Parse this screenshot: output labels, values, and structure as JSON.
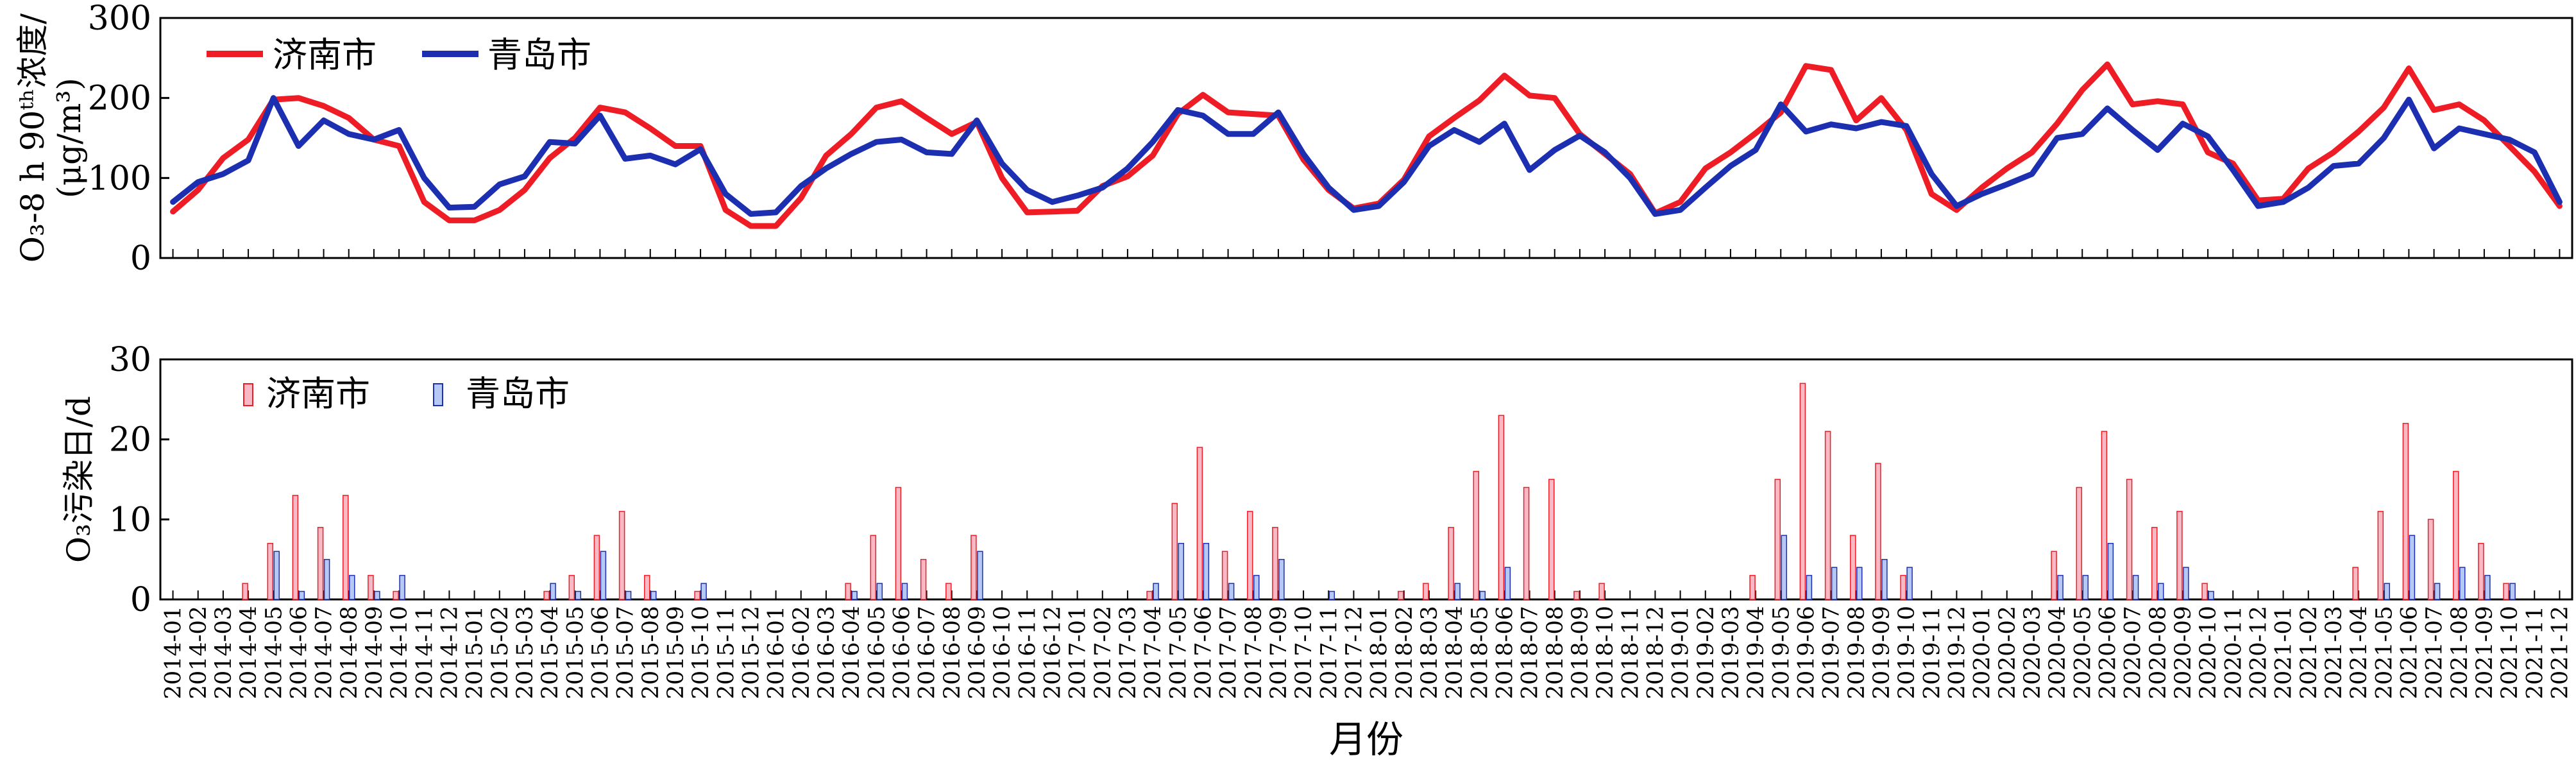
{
  "x_axis_label": "月份",
  "chart_data": [
    {
      "type": "line",
      "ylabel_line1": "O₃-8 h 90ᵗʰ浓度/",
      "ylabel_line2": "(μg/m³)",
      "ylim": [
        0,
        300
      ],
      "yticks": [
        "0",
        "100",
        "200",
        "300"
      ],
      "legend": "top-left",
      "series": [
        {
          "name": "济南市",
          "color": "#ee1c25",
          "values": [
            58,
            85,
            125,
            148,
            198,
            200,
            190,
            175,
            148,
            140,
            70,
            47,
            47,
            60,
            85,
            125,
            150,
            188,
            182,
            162,
            140,
            140,
            60,
            40,
            40,
            75,
            128,
            155,
            188,
            196,
            175,
            155,
            170,
            100,
            57,
            58,
            59,
            90,
            102,
            128,
            180,
            204,
            182,
            180,
            178,
            123,
            85,
            62,
            68,
            98,
            152,
            175,
            197,
            228,
            203,
            200,
            155,
            130,
            105,
            56,
            70,
            112,
            132,
            156,
            182,
            240,
            235,
            172,
            200,
            160,
            80,
            60,
            88,
            112,
            132,
            168,
            210,
            242,
            192,
            196,
            192,
            132,
            118,
            72,
            74,
            112,
            132,
            158,
            188,
            237,
            185,
            192,
            172,
            140,
            108,
            65
          ]
        },
        {
          "name": "青岛市",
          "color": "#1c2fb0",
          "values": [
            70,
            95,
            105,
            122,
            200,
            140,
            172,
            155,
            148,
            160,
            100,
            63,
            64,
            92,
            102,
            145,
            143,
            178,
            124,
            128,
            117,
            136,
            80,
            55,
            57,
            90,
            112,
            130,
            145,
            148,
            132,
            130,
            172,
            118,
            85,
            70,
            78,
            88,
            112,
            145,
            185,
            178,
            155,
            155,
            182,
            130,
            88,
            60,
            65,
            95,
            140,
            160,
            145,
            168,
            110,
            135,
            153,
            132,
            100,
            55,
            60,
            88,
            115,
            135,
            192,
            158,
            167,
            162,
            170,
            165,
            105,
            65,
            80,
            92,
            105,
            150,
            155,
            187,
            160,
            135,
            168,
            152,
            110,
            65,
            70,
            88,
            115,
            118,
            150,
            198,
            137,
            162,
            155,
            148,
            132,
            70
          ]
        }
      ]
    },
    {
      "type": "bar",
      "ylabel": "O₃污染日/d",
      "ylim": [
        0,
        30
      ],
      "yticks": [
        "0",
        "10",
        "20",
        "30"
      ],
      "legend": "top-left",
      "series": [
        {
          "name": "济南市",
          "color": "#ee1c25",
          "fill": "#f8b8c4",
          "values": [
            0,
            0,
            0,
            2,
            7,
            13,
            9,
            13,
            3,
            1,
            0,
            0,
            0,
            0,
            0,
            1,
            3,
            8,
            11,
            3,
            0,
            1,
            0,
            0,
            0,
            0,
            0,
            2,
            8,
            14,
            5,
            2,
            8,
            0,
            0,
            0,
            0,
            0,
            0,
            1,
            12,
            19,
            6,
            11,
            9,
            0,
            0,
            0,
            0,
            1,
            2,
            9,
            16,
            23,
            14,
            15,
            1,
            2,
            0,
            0,
            0,
            0,
            0,
            3,
            15,
            27,
            21,
            8,
            17,
            3,
            0,
            0,
            0,
            0,
            0,
            6,
            14,
            21,
            15,
            9,
            11,
            2,
            0,
            0,
            0,
            0,
            0,
            4,
            11,
            22,
            10,
            16,
            7,
            2,
            0,
            0
          ]
        },
        {
          "name": "青岛市",
          "color": "#1c2fb0",
          "fill": "#b6c8f4",
          "values": [
            0,
            0,
            0,
            0,
            6,
            1,
            5,
            3,
            1,
            3,
            0,
            0,
            0,
            0,
            0,
            2,
            1,
            6,
            1,
            1,
            0,
            2,
            0,
            0,
            0,
            0,
            0,
            1,
            2,
            2,
            0,
            0,
            6,
            0,
            0,
            0,
            0,
            0,
            0,
            2,
            7,
            7,
            2,
            3,
            5,
            0,
            1,
            0,
            0,
            0,
            0,
            2,
            1,
            4,
            0,
            0,
            0,
            0,
            0,
            0,
            0,
            0,
            0,
            0,
            8,
            3,
            4,
            4,
            5,
            4,
            0,
            0,
            0,
            0,
            0,
            3,
            3,
            7,
            3,
            2,
            4,
            1,
            0,
            0,
            0,
            0,
            0,
            0,
            2,
            8,
            2,
            4,
            3,
            2,
            0,
            0
          ]
        }
      ]
    }
  ],
  "months": [
    "2014-01",
    "2014-02",
    "2014-03",
    "2014-04",
    "2014-05",
    "2014-06",
    "2014-07",
    "2014-08",
    "2014-09",
    "2014-10",
    "2014-11",
    "2014-12",
    "2015-01",
    "2015-02",
    "2015-03",
    "2015-04",
    "2015-05",
    "2015-06",
    "2015-07",
    "2015-08",
    "2015-09",
    "2015-10",
    "2015-11",
    "2015-12",
    "2016-01",
    "2016-02",
    "2016-03",
    "2016-04",
    "2016-05",
    "2016-06",
    "2016-07",
    "2016-08",
    "2016-09",
    "2016-10",
    "2016-11",
    "2016-12",
    "2017-01",
    "2017-02",
    "2017-03",
    "2017-04",
    "2017-05",
    "2017-06",
    "2017-07",
    "2017-08",
    "2017-09",
    "2017-10",
    "2017-11",
    "2017-12",
    "2018-01",
    "2018-02",
    "2018-03",
    "2018-04",
    "2018-05",
    "2018-06",
    "2018-07",
    "2018-08",
    "2018-09",
    "2018-10",
    "2018-11",
    "2018-12",
    "2019-01",
    "2019-02",
    "2019-03",
    "2019-04",
    "2019-05",
    "2019-06",
    "2019-07",
    "2019-08",
    "2019-09",
    "2019-10",
    "2019-11",
    "2019-12",
    "2020-01",
    "2020-02",
    "2020-03",
    "2020-04",
    "2020-05",
    "2020-06",
    "2020-07",
    "2020-08",
    "2020-09",
    "2020-10",
    "2020-11",
    "2020-12",
    "2021-01",
    "2021-02",
    "2021-03",
    "2021-04",
    "2021-05",
    "2021-06",
    "2021-07",
    "2021-08",
    "2021-09",
    "2021-10",
    "2021-11",
    "2021-12"
  ]
}
